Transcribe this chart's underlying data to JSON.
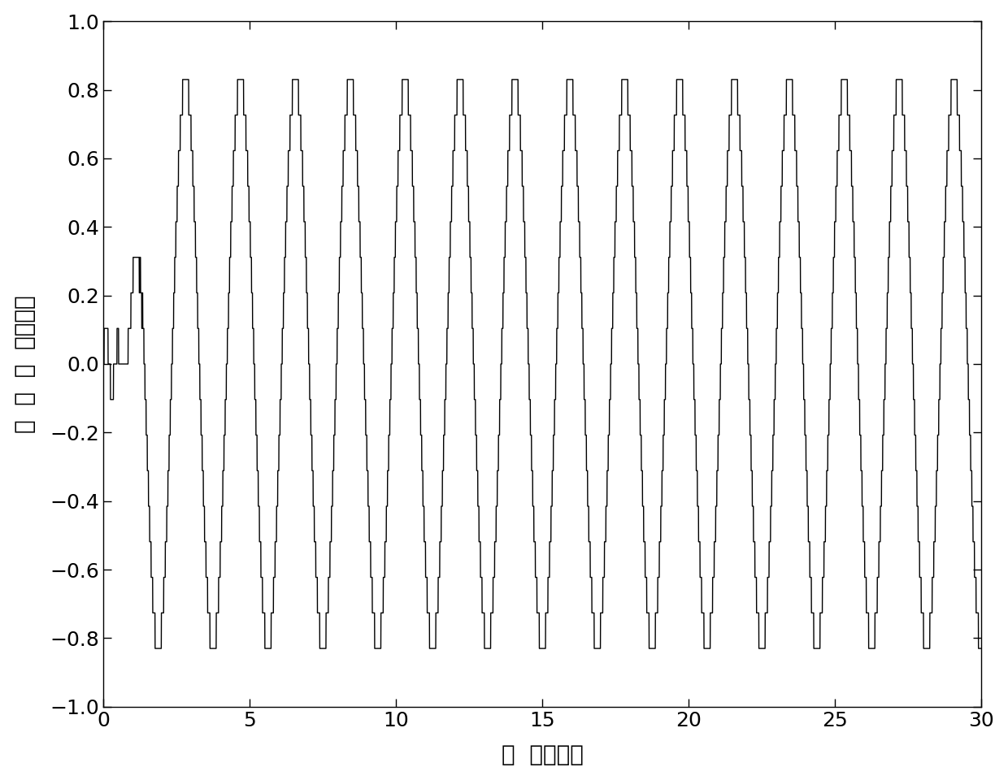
{
  "xlabel": "时  间（秒）",
  "ylabel": "控  制  输  入（伏）",
  "xlim": [
    0,
    30
  ],
  "ylim": [
    -1,
    1
  ],
  "xticks": [
    0,
    5,
    10,
    15,
    20,
    25,
    30
  ],
  "yticks": [
    -1,
    -0.8,
    -0.6,
    -0.4,
    -0.2,
    0,
    0.2,
    0.4,
    0.6,
    0.8,
    1
  ],
  "line_color": "#000000",
  "line_width": 1.0,
  "background_color": "#ffffff",
  "font_size": 20,
  "tick_font_size": 18,
  "amp": 0.83,
  "n_cycles": 16.0,
  "total_time": 30.0,
  "n_steps": 16
}
